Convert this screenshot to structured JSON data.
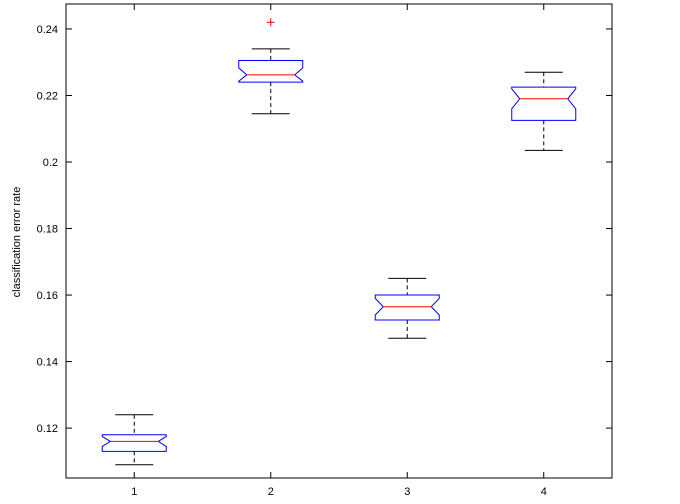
{
  "chart_data": {
    "type": "box",
    "title": "",
    "xlabel": "",
    "ylabel": "classification error rate",
    "categories": [
      "1",
      "2",
      "3",
      "4"
    ],
    "ylim": [
      0.105,
      0.2475
    ],
    "yticks": [
      0.12,
      0.14,
      0.16,
      0.18,
      0.2,
      0.22,
      0.24
    ],
    "ytick_labels": [
      "0.12",
      "0.14",
      "0.16",
      "0.18",
      "0.2",
      "0.22",
      "0.24"
    ],
    "notched": true,
    "grid": false,
    "boxes": [
      {
        "category": "1",
        "whisker_low": 0.109,
        "q1": 0.113,
        "median": 0.116,
        "q3": 0.118,
        "whisker_high": 0.124,
        "notch_low": 0.1145,
        "notch_high": 0.1175,
        "outliers": []
      },
      {
        "category": "2",
        "whisker_low": 0.2145,
        "q1": 0.224,
        "median": 0.2262,
        "q3": 0.2305,
        "whisker_high": 0.234,
        "notch_low": 0.2243,
        "notch_high": 0.2283,
        "outliers": [
          0.242
        ]
      },
      {
        "category": "3",
        "whisker_low": 0.147,
        "q1": 0.1525,
        "median": 0.1565,
        "q3": 0.16,
        "whisker_high": 0.165,
        "notch_low": 0.154,
        "notch_high": 0.159,
        "outliers": []
      },
      {
        "category": "4",
        "whisker_low": 0.2035,
        "q1": 0.2125,
        "median": 0.219,
        "q3": 0.2225,
        "whisker_high": 0.227,
        "notch_low": 0.216,
        "notch_high": 0.222,
        "outliers": []
      }
    ],
    "colors": {
      "box": "#0000ff",
      "median": "#ff0000",
      "whisker": "#000000",
      "outlier": "#ff0000",
      "axis": "#000000"
    }
  }
}
